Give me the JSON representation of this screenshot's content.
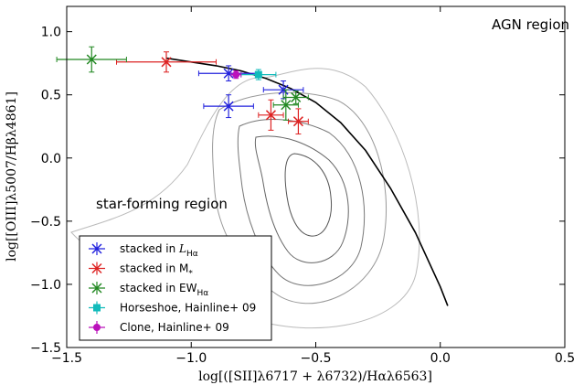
{
  "chart_data": {
    "type": "scatter",
    "title": "",
    "xlabel": "log[([SII]λ6717 + λ6732)/Hαλ6563]",
    "ylabel": "log[[OIII]λ5007/Hβλ4861]",
    "xlim": [
      -1.5,
      0.5
    ],
    "ylim": [
      -1.5,
      1.2
    ],
    "x_ticks": [
      "−1.5",
      "−1.0",
      "−0.5",
      "0.0",
      "0.5"
    ],
    "x_tick_values": [
      -1.5,
      -1.0,
      -0.5,
      0.0,
      0.5
    ],
    "y_ticks": [
      "−1.5",
      "−1.0",
      "−0.5",
      "0.0",
      "0.5",
      "1.0"
    ],
    "y_tick_values": [
      -1.5,
      -1.0,
      -0.5,
      0.0,
      0.5,
      1.0
    ],
    "grid": false,
    "legend_position": "bottom-left",
    "annotations": [
      {
        "id": "agn",
        "text": "AGN region"
      },
      {
        "id": "sf",
        "text": "star-forming region"
      }
    ],
    "demarcation_line": {
      "color": "#000000",
      "x": [
        -1.1,
        -1.0,
        -0.9,
        -0.8,
        -0.7,
        -0.6,
        -0.5,
        -0.4,
        -0.3,
        -0.2,
        -0.1,
        0.0,
        0.03
      ],
      "y": [
        0.79,
        0.76,
        0.73,
        0.69,
        0.63,
        0.55,
        0.44,
        0.28,
        0.06,
        -0.24,
        -0.59,
        -1.02,
        -1.17
      ]
    },
    "contour_color": "#888888",
    "series": [
      {
        "name": "stacked in L_Hα",
        "color": "#2222dd",
        "marker": "x",
        "points": [
          {
            "x": -0.85,
            "y": 0.67,
            "xerr": 0.12,
            "yerr": 0.06
          },
          {
            "x": -0.85,
            "y": 0.41,
            "xerr": 0.1,
            "yerr": 0.09
          },
          {
            "x": -0.63,
            "y": 0.54,
            "xerr": 0.08,
            "yerr": 0.07
          }
        ]
      },
      {
        "name": "stacked in M*",
        "color": "#dd2222",
        "marker": "x",
        "points": [
          {
            "x": -1.1,
            "y": 0.76,
            "xerr": 0.2,
            "yerr": 0.08
          },
          {
            "x": -0.68,
            "y": 0.34,
            "xerr": 0.05,
            "yerr": 0.12
          },
          {
            "x": -0.57,
            "y": 0.29,
            "xerr": 0.04,
            "yerr": 0.1
          }
        ]
      },
      {
        "name": "stacked in EW_Hα",
        "color": "#228822",
        "marker": "x",
        "points": [
          {
            "x": -1.4,
            "y": 0.78,
            "xerr": 0.14,
            "yerr": 0.1
          },
          {
            "x": -0.62,
            "y": 0.42,
            "xerr": 0.05,
            "yerr": 0.12
          },
          {
            "x": -0.58,
            "y": 0.48,
            "xerr": 0.05,
            "yerr": 0.05
          }
        ]
      },
      {
        "name": "Horseshoe, Hainline+ 09",
        "color": "#11bbbb",
        "marker": "s",
        "points": [
          {
            "x": -0.73,
            "y": 0.66,
            "xerr": 0.07,
            "yerr": 0.04
          }
        ]
      },
      {
        "name": "Clone, Hainline+ 09",
        "color": "#bb11bb",
        "marker": "o",
        "points": [
          {
            "x": -0.82,
            "y": 0.66,
            "xerr": 0.02,
            "yerr": 0.03
          }
        ]
      }
    ],
    "legend": [
      {
        "label": "stacked in ",
        "math": "L",
        "sub": "Hα"
      },
      {
        "label": "stacked in M",
        "math": "",
        "sub": "*"
      },
      {
        "label": "stacked in EW",
        "math": "",
        "sub": "Hα"
      },
      {
        "label": "Horseshoe, Hainline+ 09",
        "math": "",
        "sub": ""
      },
      {
        "label": "Clone, Hainline+ 09",
        "math": "",
        "sub": ""
      }
    ]
  }
}
